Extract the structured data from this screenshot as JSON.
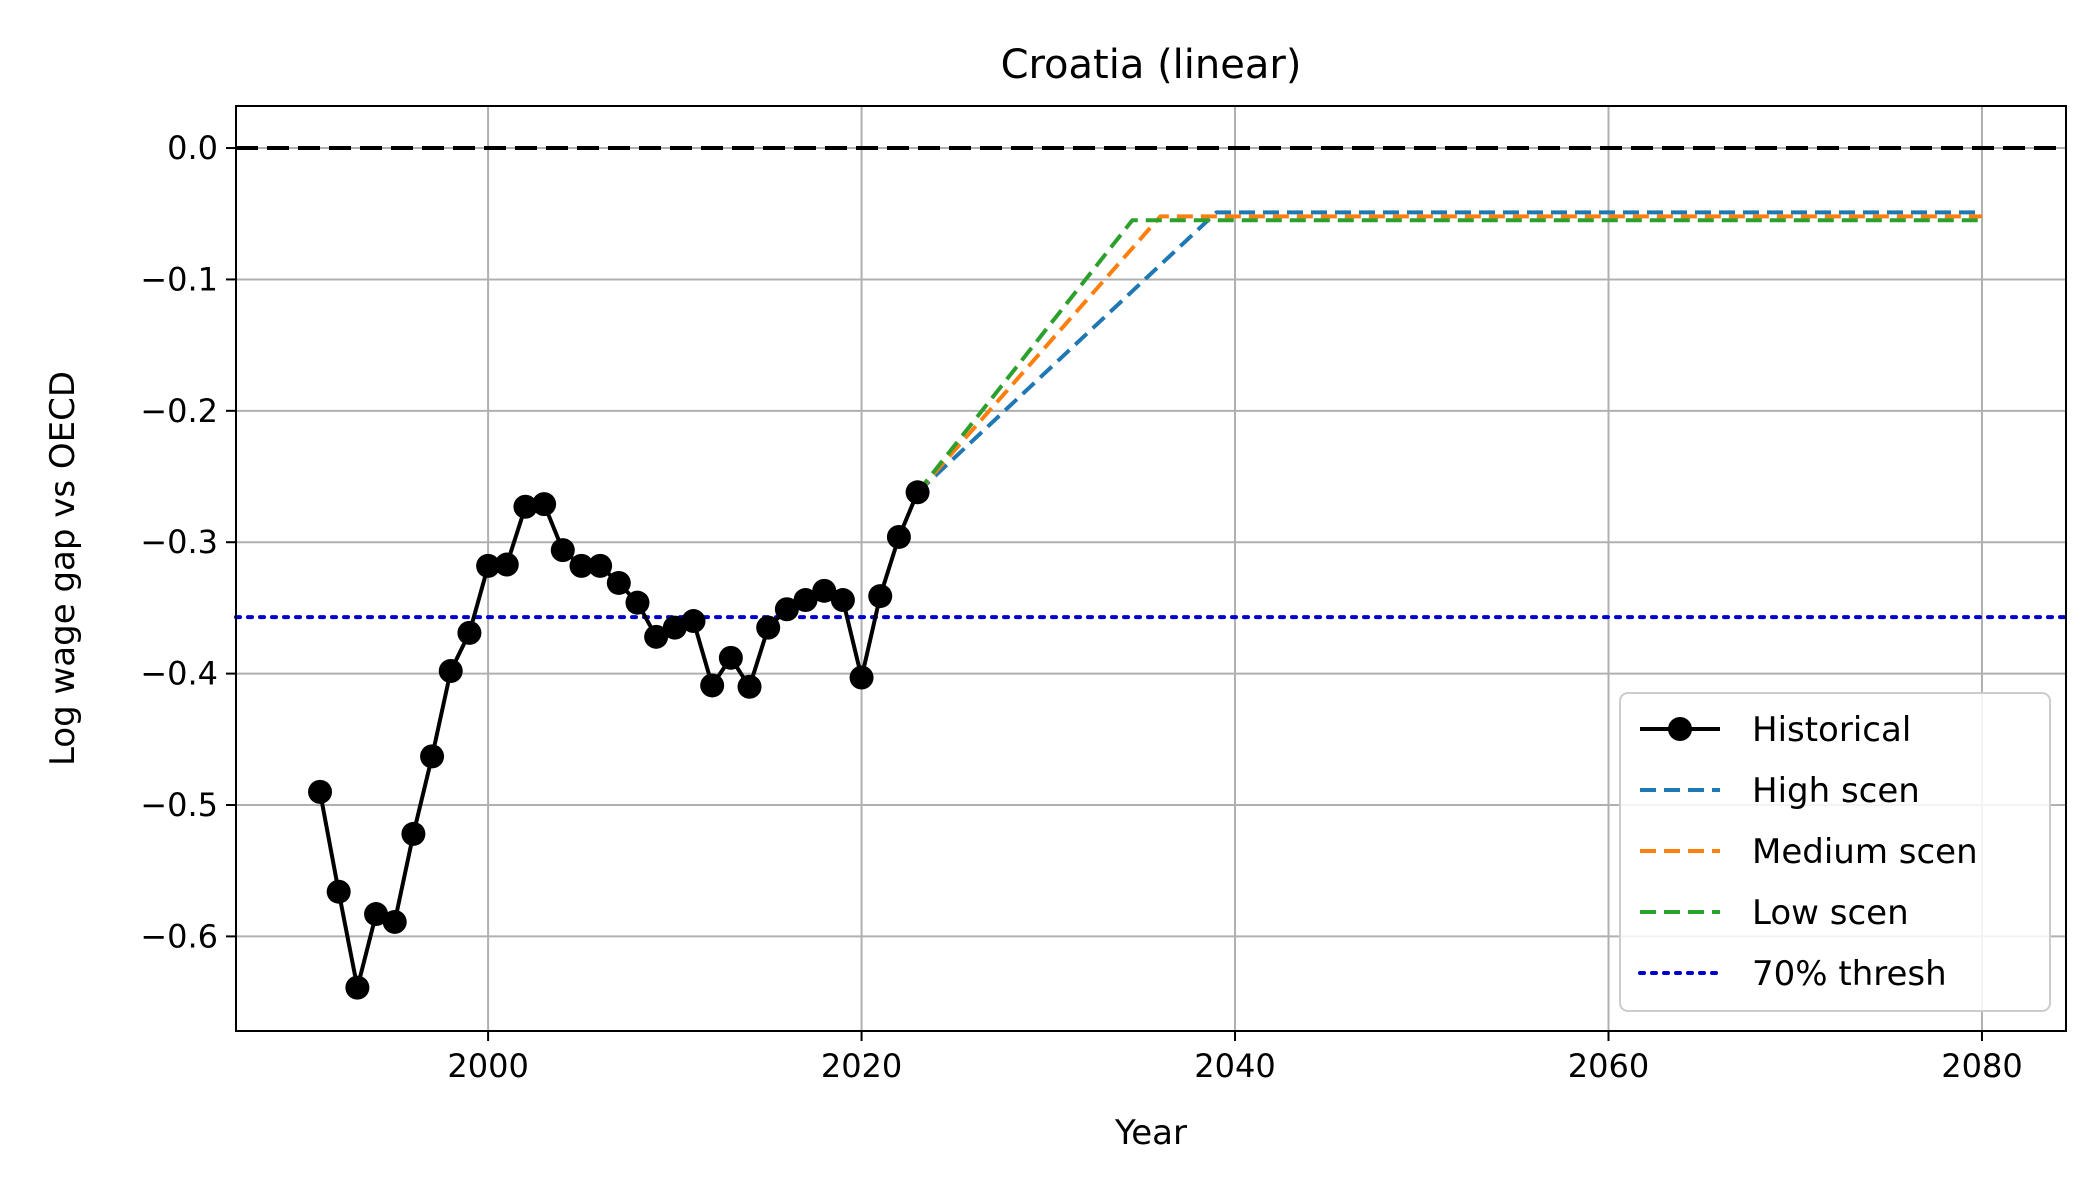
{
  "chart_data": {
    "type": "line",
    "title": "Croatia (linear)",
    "xlabel": "Year",
    "ylabel": "Log wage gap vs OECD",
    "xlim": [
      1986.5,
      2084.5
    ],
    "ylim": [
      -0.672,
      0.032
    ],
    "xticks": [
      2000,
      2020,
      2040,
      2060,
      2080
    ],
    "yticks": [
      0.0,
      -0.1,
      -0.2,
      -0.3,
      -0.4,
      -0.5,
      -0.6
    ],
    "ytick_labels": [
      "0.0",
      "−0.1",
      "−0.2",
      "−0.3",
      "−0.4",
      "−0.5",
      "−0.6"
    ],
    "grid": true,
    "legend_position": "lower-right",
    "zero_line": {
      "y": 0.0,
      "color": "#000000",
      "style": "dashed"
    },
    "threshold": {
      "name": "70% thresh",
      "y": -0.357,
      "color": "#0000cc",
      "style": "dotted"
    },
    "series": [
      {
        "name": "Historical",
        "color": "#000000",
        "style": "solid",
        "marker": "circle",
        "x": [
          1991,
          1992,
          1993,
          1994,
          1995,
          1996,
          1997,
          1998,
          1999,
          2000,
          2001,
          2002,
          2003,
          2004,
          2005,
          2006,
          2007,
          2008,
          2009,
          2010,
          2011,
          2012,
          2013,
          2014,
          2015,
          2016,
          2017,
          2018,
          2019,
          2020,
          2021,
          2022,
          2023
        ],
        "y": [
          -0.49,
          -0.566,
          -0.639,
          -0.583,
          -0.589,
          -0.522,
          -0.463,
          -0.398,
          -0.369,
          -0.318,
          -0.317,
          -0.273,
          -0.271,
          -0.306,
          -0.318,
          -0.318,
          -0.331,
          -0.346,
          -0.372,
          -0.365,
          -0.36,
          -0.409,
          -0.388,
          -0.41,
          -0.365,
          -0.351,
          -0.344,
          -0.337,
          -0.344,
          -0.403,
          -0.341,
          -0.296,
          -0.262
        ]
      },
      {
        "name": "High scen",
        "color": "#1f77b4",
        "style": "dashed",
        "x": [
          2023,
          2039,
          2080
        ],
        "y": [
          -0.262,
          -0.049,
          -0.049
        ]
      },
      {
        "name": "Medium scen",
        "color": "#ff7f0e",
        "style": "dashed",
        "x": [
          2023,
          2036,
          2080
        ],
        "y": [
          -0.262,
          -0.052,
          -0.052
        ]
      },
      {
        "name": "Low scen",
        "color": "#2ca02c",
        "style": "dashed",
        "x": [
          2023,
          2034.5,
          2080
        ],
        "y": [
          -0.262,
          -0.055,
          -0.055
        ]
      }
    ]
  }
}
